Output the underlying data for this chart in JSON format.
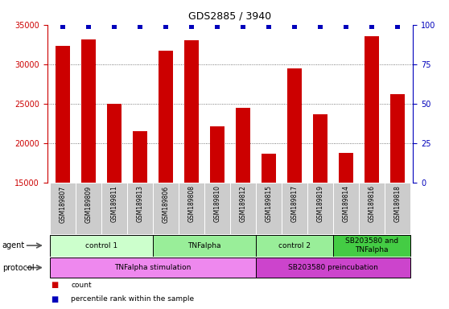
{
  "title": "GDS2885 / 3940",
  "samples": [
    "GSM189807",
    "GSM189809",
    "GSM189811",
    "GSM189813",
    "GSM189806",
    "GSM189808",
    "GSM189810",
    "GSM189812",
    "GSM189815",
    "GSM189817",
    "GSM189819",
    "GSM189814",
    "GSM189816",
    "GSM189818"
  ],
  "counts": [
    32300,
    33100,
    25000,
    21500,
    31700,
    33000,
    22200,
    24500,
    18700,
    29500,
    23700,
    18800,
    33500,
    26200
  ],
  "ymin": 15000,
  "ymax": 35000,
  "yticks": [
    15000,
    20000,
    25000,
    30000,
    35000
  ],
  "y2ticks": [
    0,
    25,
    50,
    75,
    100
  ],
  "bar_color": "#cc0000",
  "dot_color": "#0000bb",
  "agent_groups": [
    {
      "label": "control 1",
      "start": 0,
      "end": 4,
      "color": "#ccffcc"
    },
    {
      "label": "TNFalpha",
      "start": 4,
      "end": 8,
      "color": "#99ee99"
    },
    {
      "label": "control 2",
      "start": 8,
      "end": 11,
      "color": "#99ee99"
    },
    {
      "label": "SB203580 and\nTNFalpha",
      "start": 11,
      "end": 14,
      "color": "#44cc44"
    }
  ],
  "protocol_groups": [
    {
      "label": "TNFalpha stimulation",
      "start": 0,
      "end": 8,
      "color": "#ee88ee"
    },
    {
      "label": "SB203580 preincubation",
      "start": 8,
      "end": 14,
      "color": "#cc44cc"
    }
  ],
  "tick_bg_color": "#cccccc",
  "legend_count_color": "#cc0000",
  "legend_dot_color": "#0000bb",
  "gridline_color": "#555555",
  "title_fontsize": 9,
  "bar_fontsize": 7,
  "label_fontsize": 6,
  "group_fontsize": 6.5
}
